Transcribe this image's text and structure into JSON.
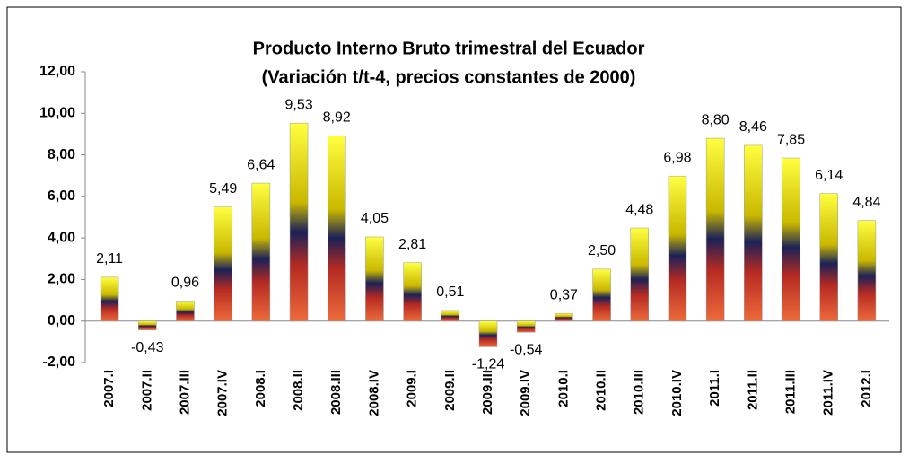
{
  "chart_data": {
    "type": "bar",
    "title": [
      "Producto Interno Bruto trimestral del Ecuador",
      "(Variación t/t-4, precios constantes de 2000)"
    ],
    "categories": [
      "2007.I",
      "2007.II",
      "2007.III",
      "2007.IV",
      "2008.I",
      "2008.II",
      "2008.III",
      "2008.IV",
      "2009.I",
      "2009.II",
      "2009.III",
      "2009.IV",
      "2010.I",
      "2010.II",
      "2010.III",
      "2010.IV",
      "2011.I",
      "2011.II",
      "2011.III",
      "2011.IV",
      "2012.I"
    ],
    "values": [
      2.11,
      -0.43,
      0.96,
      5.49,
      6.64,
      9.53,
      8.92,
      4.05,
      2.81,
      0.51,
      -1.24,
      -0.54,
      0.37,
      2.5,
      4.48,
      6.98,
      8.8,
      8.46,
      7.85,
      6.14,
      4.84
    ],
    "value_labels": [
      "2,11",
      "-0,43",
      "0,96",
      "5,49",
      "6,64",
      "9,53",
      "8,92",
      "4,05",
      "2,81",
      "0,51",
      "-1,24",
      "-0,54",
      "0,37",
      "2,50",
      "4,48",
      "6,98",
      "8,80",
      "8,46",
      "7,85",
      "6,14",
      "4,84"
    ],
    "gradient": [
      "#ffff40",
      "#c9b800",
      "#1b2158",
      "#b52a22",
      "#ee6a3a"
    ],
    "ylim": [
      -2,
      12
    ],
    "yticks": [
      {
        "value": -2,
        "label": "-2,00"
      },
      {
        "value": 0,
        "label": "0,00"
      },
      {
        "value": 2,
        "label": "2,00"
      },
      {
        "value": 4,
        "label": "4,00"
      },
      {
        "value": 6,
        "label": "6,00"
      },
      {
        "value": 8,
        "label": "8,00"
      },
      {
        "value": 10,
        "label": "10,00"
      },
      {
        "value": 12,
        "label": "12,00"
      }
    ],
    "grid": false
  }
}
